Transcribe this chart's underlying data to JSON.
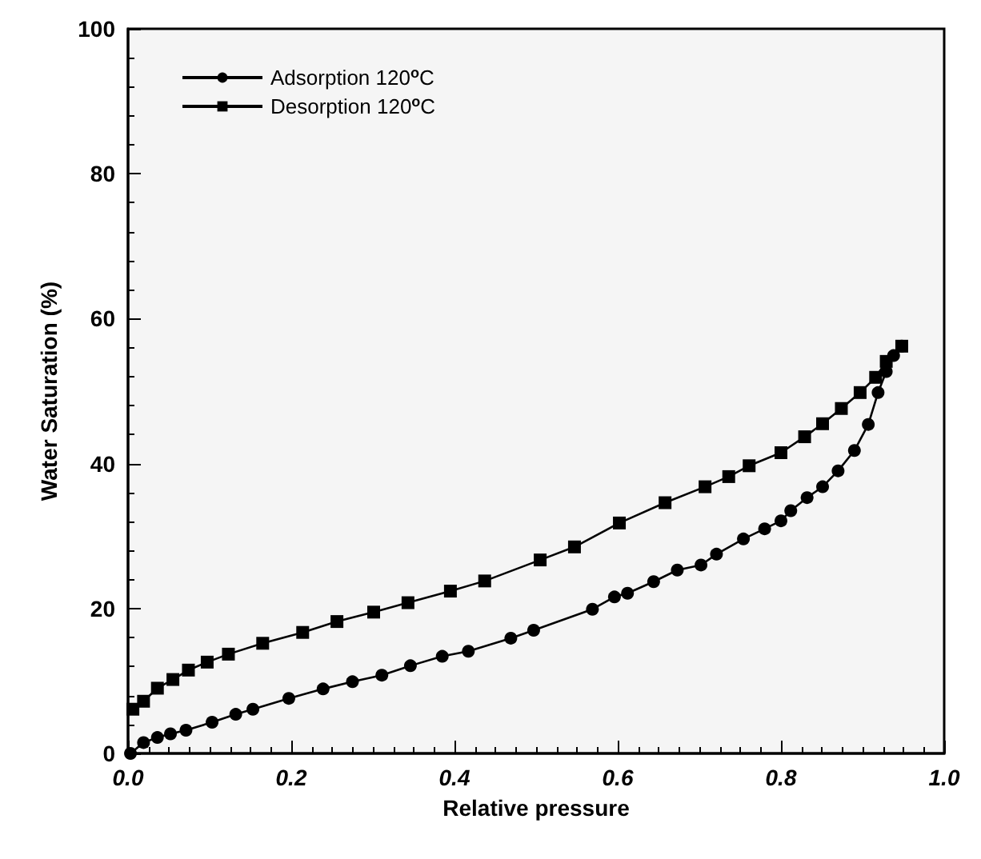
{
  "chart_data": {
    "type": "line",
    "xlabel": "Relative pressure",
    "ylabel": "Water Saturation (%)",
    "xlim": [
      0,
      1
    ],
    "xticks": [
      {
        "value": 0,
        "label": "0.0"
      },
      {
        "value": 0.2,
        "label": "0.2"
      },
      {
        "value": 0.4,
        "label": "0.4"
      },
      {
        "value": 0.6,
        "label": "0.6"
      },
      {
        "value": 0.8,
        "label": "0.8"
      },
      {
        "value": 1,
        "label": "1.0"
      }
    ],
    "ylim": [
      0,
      100
    ],
    "yticks": [
      0,
      20,
      40,
      60,
      80,
      100
    ],
    "grid": false,
    "legend": "top left",
    "line_style": "solid",
    "series": [
      {
        "name": "Adsorption 120$^{o}$C",
        "color": "#000000",
        "marker": "circle",
        "x": [
          0.003,
          0.019,
          0.036,
          0.052,
          0.071,
          0.103,
          0.132,
          0.153,
          0.197,
          0.239,
          0.275,
          0.311,
          0.346,
          0.385,
          0.417,
          0.469,
          0.497,
          0.569,
          0.596,
          0.612,
          0.644,
          0.673,
          0.702,
          0.721,
          0.754,
          0.78,
          0.8,
          0.812,
          0.832,
          0.851,
          0.87,
          0.89,
          0.907,
          0.919,
          0.929,
          0.938,
          0.948
        ],
        "values": [
          0,
          1.5,
          2.2,
          2.7,
          3.2,
          4.3,
          5.4,
          6.1,
          7.6,
          8.9,
          9.9,
          10.8,
          12.1,
          13.4,
          14.1,
          15.9,
          17,
          19.9,
          21.6,
          22.1,
          23.7,
          25.3,
          26,
          27.5,
          29.6,
          31,
          32.1,
          33.5,
          35.3,
          36.8,
          39,
          41.8,
          45.4,
          49.8,
          52.7,
          54.9,
          56.2
        ]
      },
      {
        "name": "Desorption 120$^{o}$C",
        "color": "#000000",
        "marker": "square",
        "x": [
          0.948,
          0.929,
          0.916,
          0.897,
          0.874,
          0.851,
          0.829,
          0.8,
          0.761,
          0.736,
          0.707,
          0.658,
          0.602,
          0.547,
          0.505,
          0.437,
          0.395,
          0.343,
          0.301,
          0.256,
          0.214,
          0.165,
          0.123,
          0.097,
          0.074,
          0.055,
          0.036,
          0.019,
          0.006
        ],
        "values": [
          56.2,
          54.1,
          51.9,
          49.8,
          47.6,
          45.5,
          43.7,
          41.5,
          39.7,
          38.2,
          36.8,
          34.6,
          31.8,
          28.5,
          26.7,
          23.8,
          22.4,
          20.8,
          19.5,
          18.2,
          16.7,
          15.2,
          13.7,
          12.6,
          11.5,
          10.2,
          9,
          7.2,
          6.1
        ]
      }
    ]
  }
}
